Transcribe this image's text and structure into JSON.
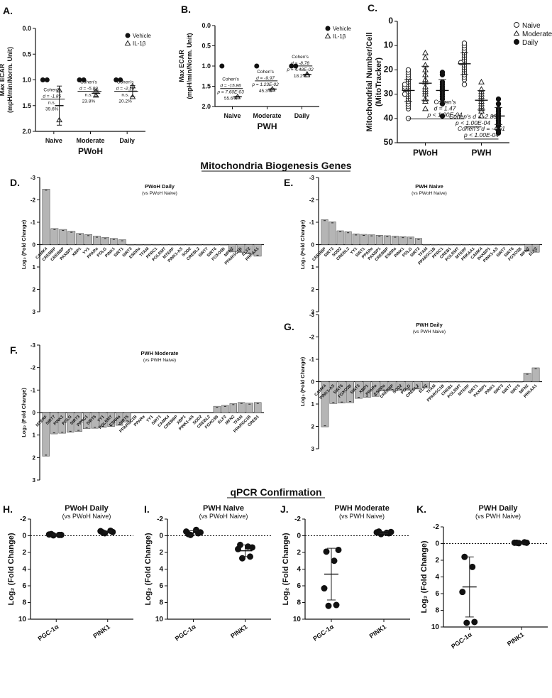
{
  "figure": {
    "section_titles": {
      "biogenesis": "Mitochondria Biogenesis Genes",
      "qpcr": "qPCR Confirmation"
    }
  },
  "chart_data": [
    {
      "id": "A",
      "panel_label": "A.",
      "type": "scatter",
      "ylabel_lines": [
        "Max ECAR",
        "(mpH/min/Norm. Unit)"
      ],
      "xlabel": "PWoH",
      "categories": [
        "Naive",
        "Moderate",
        "Daily"
      ],
      "ylim": [
        0,
        2.0
      ],
      "yticks": [
        "0.0",
        "0.5",
        "1.0",
        "1.5",
        "2.0"
      ],
      "ytick_values": [
        0,
        0.5,
        1.0,
        1.5,
        2.0
      ],
      "legend": [
        "Vehicle",
        "IL-1β"
      ],
      "legend_position": "top-right",
      "series": [
        {
          "name": "Vehicle",
          "marker": "filled-circle",
          "points": [
            [
              0,
              1.0
            ],
            [
              0,
              1.0
            ],
            [
              1,
              1.0
            ],
            [
              1,
              1.0
            ],
            [
              2,
              1.0
            ],
            [
              2,
              1.0
            ]
          ]
        },
        {
          "name": "IL-1β",
          "marker": "open-triangle",
          "points": [
            [
              0,
              1.78
            ],
            [
              0,
              1.2
            ],
            [
              1,
              1.3
            ],
            [
              1,
              1.22
            ],
            [
              2,
              1.33
            ],
            [
              2,
              1.12
            ]
          ],
          "means": [
            1.5,
            1.26,
            1.22
          ],
          "sd": [
            0.38,
            0.06,
            0.11
          ]
        }
      ],
      "annotations": [
        {
          "cat": 0,
          "lines": [
            "Cohen's",
            "d = -1.85",
            "n.s.",
            "39.6%"
          ],
          "y": 1.58
        },
        {
          "cat": 1,
          "lines": [
            "Cohen's",
            "d = -5.89",
            "n.s.",
            "23.8%"
          ],
          "y": 1.43
        },
        {
          "cat": 2,
          "lines": [
            "Cohen's",
            "d = -2.18",
            "n.s.",
            "20.2%"
          ],
          "y": 1.43
        }
      ]
    },
    {
      "id": "B",
      "panel_label": "B.",
      "type": "scatter",
      "ylabel_lines": [
        "Max ECAR",
        "(mpH/min/Norm. Unit)"
      ],
      "xlabel": "PWH",
      "categories": [
        "Naive",
        "Moderate",
        "Daily"
      ],
      "ylim": [
        0,
        2.0
      ],
      "yticks": [
        "0.0",
        "0.5",
        "1.0",
        "1.5",
        "2.0"
      ],
      "ytick_values": [
        0,
        0.5,
        1.0,
        1.5,
        2.0
      ],
      "legend": [
        "Vehicle",
        "IL-1β"
      ],
      "legend_position": "top-right",
      "series": [
        {
          "name": "Vehicle",
          "marker": "filled-circle",
          "points": [
            [
              0,
              1.0
            ],
            [
              1,
              1.0
            ],
            [
              2,
              1.0
            ],
            [
              2,
              1.0
            ]
          ]
        },
        {
          "name": "IL-1β",
          "marker": "open-triangle",
          "points": [
            [
              0,
              1.76
            ],
            [
              1,
              1.57
            ],
            [
              2,
              1.2
            ],
            [
              2,
              1.22
            ]
          ],
          "means": [
            1.76,
            1.57,
            1.21
          ],
          "sd": [
            0.01,
            0.01,
            0.01
          ]
        }
      ],
      "annotations": [
        {
          "cat": 0,
          "lines": [
            "Cohen's",
            "d = -15.86",
            "p = 7.60E-03",
            "55.6%"
          ],
          "y": 1.82
        },
        {
          "cat": 1,
          "lines": [
            "Cohen's",
            "d = -9.97",
            "p = 1.23E-02",
            "45.3%"
          ],
          "y": 1.63
        },
        {
          "cat": 2,
          "lines": [
            "Cohen's",
            "d = -8.78",
            "p = 4.48E-02",
            "18.2%"
          ],
          "y": 1.26
        }
      ]
    },
    {
      "id": "C",
      "panel_label": "C.",
      "type": "scatter",
      "ylabel_lines": [
        "Mitochondrial Number/Cell",
        "(MitoTracker)"
      ],
      "categories": [
        "PWoH",
        "PWH"
      ],
      "ylim": [
        0,
        50
      ],
      "yticks": [
        "0",
        "10",
        "20",
        "30",
        "40",
        "50"
      ],
      "ytick_values": [
        0,
        10,
        20,
        30,
        40,
        50
      ],
      "legend": [
        "Naive",
        "Moderate",
        "Daily"
      ],
      "legend_position": "top-right",
      "groups": [
        {
          "cat": 0,
          "series": "Naive",
          "marker": "open-circle",
          "mean": 28.5,
          "sd": 4.5,
          "values": [
            40,
            36,
            35,
            34,
            33,
            32,
            31,
            30,
            30,
            29,
            28,
            28,
            27,
            27,
            26,
            26,
            25,
            24,
            23,
            22,
            21,
            20
          ]
        },
        {
          "cat": 0,
          "series": "Moderate",
          "marker": "open-triangle",
          "mean": 25.5,
          "sd": 7.0,
          "values": [
            36,
            33,
            32,
            30,
            29,
            28,
            27,
            25,
            24,
            22,
            20,
            18,
            15,
            13
          ]
        },
        {
          "cat": 0,
          "series": "Daily",
          "marker": "filled-circle",
          "mean": 28.5,
          "sd": 4.5,
          "values": [
            39,
            34,
            32,
            31,
            30,
            29,
            28,
            27,
            26,
            25,
            22,
            21
          ]
        },
        {
          "cat": 1,
          "series": "Naive",
          "marker": "open-circle",
          "mean": 17.5,
          "sd": 4.5,
          "values": [
            26,
            24,
            23,
            22,
            21,
            20,
            19,
            18,
            17,
            17,
            16,
            15,
            14,
            13,
            12,
            11,
            10,
            9
          ]
        },
        {
          "cat": 1,
          "series": "Moderate",
          "marker": "open-triangle",
          "mean": 32.5,
          "sd": 4.0,
          "values": [
            39,
            37,
            36,
            35,
            34,
            33,
            32,
            31,
            30,
            29,
            28,
            25
          ]
        },
        {
          "cat": 1,
          "series": "Daily",
          "marker": "filled-circle",
          "mean": 39.0,
          "sd": 3.5,
          "values": [
            46,
            45,
            43,
            42,
            41,
            40,
            39,
            38,
            37,
            36,
            34,
            32
          ]
        }
      ],
      "annotations": [
        {
          "lines": [
            "Cohen's",
            "d = 1.47"
          ],
          "bold_line": "p < 1.00E-04",
          "y": 40.2,
          "from": [
            0,
            "Naive"
          ],
          "to": [
            1,
            "Naive"
          ]
        },
        {
          "lines": [
            "Cohen's d = -2.83"
          ],
          "bold_line": "p < 1.00E-04",
          "y": 43.5,
          "from": [
            1,
            "Naive"
          ],
          "to": [
            1,
            "Moderate"
          ]
        },
        {
          "lines": [
            "Cohen's d = -4.61"
          ],
          "bold_line": "p < 1.00E-04",
          "y": 48.5,
          "from": [
            1,
            "Naive"
          ],
          "to": [
            1,
            "Daily"
          ]
        }
      ]
    },
    {
      "id": "D",
      "panel_label": "D.",
      "type": "bar",
      "title": "PWoH Daily",
      "subtitle": "(vs PWoH Naive)",
      "ylabel": "Log₂ (Fold Change)",
      "ylim": [
        -3,
        3
      ],
      "yticks": [
        "-3",
        "-2",
        "-1",
        "0",
        "1",
        "2",
        "3"
      ],
      "ytick_values": [
        -3,
        -2,
        -1,
        0,
        1,
        2,
        3
      ],
      "categories": [
        "CAMK4",
        "CREBBP",
        "CREBBP",
        "PAXBP1",
        "XBP1",
        "YY1",
        "PPARα",
        "POLG",
        "PINK1",
        "SIRT1",
        "SIRT3",
        "ESRRα",
        "TFAM",
        "PPRC1",
        "POLRMT",
        "MTERF",
        "PINK1-AS",
        "SOD2",
        "CREBL2",
        "SIRT7",
        "SIRT6",
        "FOXO3B",
        "MFN2",
        "PPARGC1B",
        "ELF2",
        "PRKAA1"
      ],
      "values": [
        -2.48,
        -0.72,
        -0.68,
        -0.6,
        -0.5,
        -0.45,
        -0.38,
        -0.32,
        -0.28,
        -0.22,
        0,
        0,
        0,
        0,
        0,
        0,
        0,
        0,
        0,
        0,
        0,
        0,
        0.33,
        0.35,
        0.42,
        0.52
      ]
    },
    {
      "id": "E",
      "panel_label": "E.",
      "type": "bar",
      "title": "PWH Naive",
      "subtitle": "(vs PWoH Naive)",
      "ylabel": "Log₂ (Fold Change)",
      "ylim": [
        -3,
        3
      ],
      "yticks": [
        "-3",
        "-2",
        "-1",
        "0",
        "1",
        "2",
        "3"
      ],
      "ytick_values": [
        -3,
        -2,
        -1,
        0,
        1,
        2,
        3
      ],
      "categories": [
        "CREBBP",
        "SIRT3",
        "SOD2",
        "CREBL2",
        "YY1",
        "SIRT1",
        "PPARα",
        "PAXBP1",
        "CREBBP",
        "ESRRα",
        "PINK1",
        "POLG",
        "SIRT3",
        "TFAM",
        "PPARGC1B",
        "PPRC1",
        "CREB1",
        "POLRMT",
        "MTERF",
        "PRKAA1",
        "CAMK4",
        "PAXBP1",
        "PINK1-AS",
        "SIRT7",
        "SIRT6",
        "FOXO3B",
        "MFN2",
        "ELF2"
      ],
      "values": [
        -1.12,
        -1.02,
        -0.62,
        -0.58,
        -0.48,
        -0.46,
        -0.44,
        -0.42,
        -0.4,
        -0.38,
        -0.36,
        -0.34,
        -0.28,
        0,
        0,
        0,
        0,
        0,
        0,
        0,
        0,
        0,
        0,
        0,
        0,
        0,
        0.3,
        0.34
      ]
    },
    {
      "id": "F",
      "panel_label": "F.",
      "type": "bar",
      "title": "PWH Moderate",
      "subtitle": "(vs PWH Naive)",
      "ylabel": "Log₂ (Fold Change)",
      "ylim": [
        -3,
        3
      ],
      "yticks": [
        "-3",
        "-2",
        "-1",
        "0",
        "1",
        "2",
        "3"
      ],
      "ytick_values": [
        -3,
        -2,
        -1,
        0,
        1,
        2,
        3
      ],
      "categories": [
        "MTERF",
        "SIRT7",
        "PINK1",
        "POLG",
        "SIRT3",
        "PPRC1",
        "SIRT6",
        "YY1",
        "POLRMT",
        "ESRRα",
        "SIRT5",
        "PPARGC1B",
        "PPARα",
        "YY1",
        "SIRT1",
        "CAMK4",
        "CREBBP",
        "XBP1",
        "PINK1-AS",
        "SOD2",
        "CREBL2",
        "FOXO3B",
        "ELF2",
        "MFN2",
        "TFAM",
        "PPARGC1B",
        "CREB1"
      ],
      "values": [
        1.94,
        0.95,
        0.92,
        0.88,
        0.84,
        0.72,
        0.7,
        0.66,
        0.62,
        0.57,
        0.42,
        0,
        0,
        0,
        0,
        0,
        0,
        0,
        0,
        0,
        0,
        -0.28,
        -0.32,
        -0.4,
        -0.45,
        -0.42,
        -0.45
      ]
    },
    {
      "id": "G",
      "panel_label": "G.",
      "type": "bar",
      "title": "PWH Daily",
      "subtitle": "(vs PWH Naive)",
      "ylabel": "Log₂ (Fold Change)",
      "ylim": [
        -3,
        3
      ],
      "yticks": [
        "-3",
        "-2",
        "-1",
        "0",
        "1",
        "2",
        "3"
      ],
      "ytick_values": [
        -3,
        -2,
        -1,
        0,
        1,
        2,
        3
      ],
      "categories": [
        "CAMK4",
        "PINK1-AS",
        "SIRT6",
        "FOXO3B",
        "SIRT3",
        "XBP1",
        "PPARα",
        "ESRRα",
        "CREBBP",
        "SOD2",
        "POLG",
        "CREBL2",
        "ELF2",
        "TFAM",
        "PPARGC1B",
        "CREB1",
        "POLRMT",
        "MTERF",
        "SIRT1",
        "PAXBP1",
        "PINK1",
        "SIRT3",
        "SIRT7",
        "SIRT5",
        "MFN2",
        "PRKAA1"
      ],
      "values": [
        2.02,
        0.98,
        0.96,
        0.94,
        0.75,
        0.7,
        0.66,
        0.42,
        0.4,
        0.39,
        0.38,
        0.33,
        0.28,
        0,
        0,
        0,
        0,
        0,
        0,
        0,
        0,
        0,
        0,
        0,
        -0.38,
        -0.62
      ]
    },
    {
      "id": "H",
      "panel_label": "H.",
      "type": "scatter",
      "title": "PWoH Daily",
      "subtitle": "(vs PWoH Naive)",
      "ylabel": "Log₂ (Fold Change)",
      "categories": [
        "PGC-1α",
        "PINK1"
      ],
      "ylim": [
        -2,
        10
      ],
      "yticks": [
        "-2",
        "0",
        "2",
        "4",
        "6",
        "8",
        "10"
      ],
      "ytick_values": [
        -2,
        0,
        2,
        4,
        6,
        8,
        10
      ],
      "groups": [
        {
          "cat": 0,
          "values": [
            -0.05,
            -0.1,
            -0.15,
            -0.1,
            -0.2
          ],
          "mean": -0.12,
          "sd": 0.06
        },
        {
          "cat": 1,
          "values": [
            -0.3,
            -0.45,
            -0.55,
            -0.6,
            -0.4
          ],
          "mean": -0.46,
          "sd": 0.1
        }
      ]
    },
    {
      "id": "I",
      "panel_label": "I.",
      "type": "scatter",
      "title": "PWH Naive",
      "subtitle": "(vs PWoH Naive)",
      "ylabel": "Log₂ (Fold Change)",
      "categories": [
        "PGC-1α",
        "PINK1"
      ],
      "ylim": [
        -2,
        10
      ],
      "yticks": [
        "-2",
        "0",
        "2",
        "4",
        "6",
        "8",
        "10"
      ],
      "ytick_values": [
        -2,
        0,
        2,
        4,
        6,
        8,
        10
      ],
      "groups": [
        {
          "cat": 0,
          "values": [
            -0.1,
            -0.3,
            -0.5,
            -0.7,
            -0.2,
            -0.4
          ],
          "mean": -0.35,
          "sd": 0.25
        },
        {
          "cat": 1,
          "values": [
            2.7,
            2.5,
            1.6,
            1.3,
            1.1,
            1.4
          ],
          "mean": 1.8,
          "sd": 0.7
        }
      ]
    },
    {
      "id": "J",
      "panel_label": "J.",
      "type": "scatter",
      "title": "PWH Moderate",
      "subtitle": "(vs PWH Naive)",
      "ylabel": "Log₂ (Fold Change)",
      "categories": [
        "PGC-1α",
        "PINK1"
      ],
      "ylim": [
        -2,
        10
      ],
      "yticks": [
        "-2",
        "0",
        "2",
        "4",
        "6",
        "8",
        "10"
      ],
      "ytick_values": [
        -2,
        0,
        2,
        4,
        6,
        8,
        10
      ],
      "groups": [
        {
          "cat": 0,
          "values": [
            8.4,
            8.3,
            6.3,
            3.0,
            1.9,
            1.7
          ],
          "mean": 4.6,
          "sd": 3.1
        },
        {
          "cat": 1,
          "values": [
            -0.2,
            -0.3,
            -0.4,
            -0.35,
            -0.5,
            -0.45
          ],
          "mean": -0.37,
          "sd": 0.12
        }
      ]
    },
    {
      "id": "K",
      "panel_label": "K.",
      "type": "scatter",
      "title": "PWH Daily",
      "subtitle": "(vs PWH Naive)",
      "ylabel": "Log₂ (Fold Change)",
      "categories": [
        "PGC-1α",
        "PINK1"
      ],
      "ylim": [
        -2,
        10
      ],
      "yticks": [
        "-2",
        "0",
        "2",
        "4",
        "6",
        "8",
        "10"
      ],
      "ytick_values": [
        -2,
        0,
        2,
        4,
        6,
        8,
        10
      ],
      "groups": [
        {
          "cat": 0,
          "values": [
            9.5,
            9.4,
            5.8,
            2.8,
            1.6
          ],
          "mean": 5.2,
          "sd": 3.6
        },
        {
          "cat": 1,
          "values": [
            -0.05,
            -0.1,
            -0.1,
            -0.15,
            -0.1
          ],
          "mean": -0.1,
          "sd": 0.04
        }
      ]
    }
  ]
}
